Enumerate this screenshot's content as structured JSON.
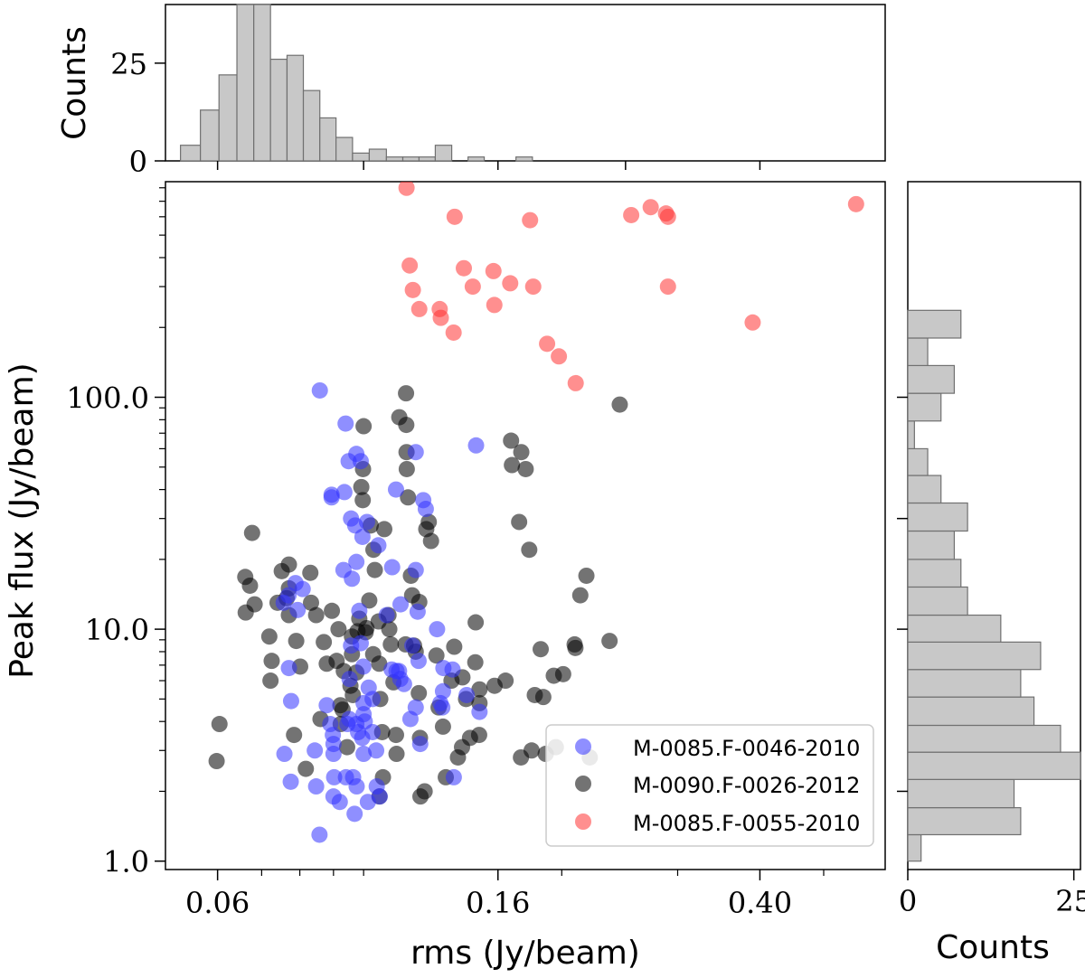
{
  "chart_data": {
    "type": "scatter",
    "xlabel": "rms (Jy/beam)",
    "ylabel": "Peak flux (Jy/beam)",
    "x_scale": "log",
    "y_scale": "log",
    "xlim": [
      0.05,
      0.62
    ],
    "ylim": [
      0.92,
      850
    ],
    "x_tick_labels": [
      "0.06",
      "0.16",
      "0.40"
    ],
    "y_tick_labels": [
      "1.0",
      "10.0",
      "100.0"
    ],
    "legend_position": "lower-right",
    "series": [
      {
        "name": "M-0085.F-0046-2010",
        "color": "#3333ff",
        "points": [
          [
            0.0858,
            107
          ],
          [
            0.0788,
            15.8
          ],
          [
            0.0808,
            14.9
          ],
          [
            0.0769,
            14.0
          ],
          [
            0.0756,
            13.0
          ],
          [
            0.0794,
            12.1
          ],
          [
            0.077,
            6.8
          ],
          [
            0.0776,
            4.9
          ],
          [
            0.0758,
            2.9
          ],
          [
            0.0775,
            2.2
          ],
          [
            0.0843,
            3.0
          ],
          [
            0.0847,
            2.1
          ],
          [
            0.0857,
            1.3
          ],
          [
            0.0879,
            4.7
          ],
          [
            0.089,
            3.9
          ],
          [
            0.0898,
            3.5
          ],
          [
            0.09,
            3.2
          ],
          [
            0.09,
            2.9
          ],
          [
            0.09,
            1.9
          ],
          [
            0.0902,
            2.3
          ],
          [
            0.092,
            1.8
          ],
          [
            0.094,
            2.3
          ],
          [
            0.0945,
            3.9
          ],
          [
            0.0951,
            4.1
          ],
          [
            0.0964,
            2.3
          ],
          [
            0.0969,
            1.6
          ],
          [
            0.0975,
            3.9
          ],
          [
            0.0976,
            2.1
          ],
          [
            0.0981,
            3.6
          ],
          [
            0.0995,
            3.4
          ],
          [
            0.1,
            2.9
          ],
          [
            0.1,
            4.3
          ],
          [
            0.1,
            4.8
          ],
          [
            0.1004,
            4.0
          ],
          [
            0.1015,
            1.8
          ],
          [
            0.1032,
            3.6
          ],
          [
            0.1045,
            3.0
          ],
          [
            0.1047,
            2.1
          ],
          [
            0.1058,
            1.9
          ],
          [
            0.0894,
            37
          ],
          [
            0.0894,
            38
          ],
          [
            0.0935,
            39
          ],
          [
            0.0939,
            77
          ],
          [
            0.0949,
            53
          ],
          [
            0.0957,
            30
          ],
          [
            0.0975,
            57
          ],
          [
            0.099,
            53
          ],
          [
            0.0971,
            28
          ],
          [
            0.0996,
            25
          ],
          [
            0.1012,
            29
          ],
          [
            0.0975,
            19.5
          ],
          [
            0.0932,
            18.0
          ],
          [
            0.096,
            16.5
          ],
          [
            0.0957,
            8.5
          ],
          [
            0.0952,
            6.1
          ],
          [
            0.0985,
            12.0
          ],
          [
            0.099,
            8.7
          ],
          [
            0.0999,
            6.9
          ],
          [
            0.1018,
            5.6
          ],
          [
            0.1032,
            5.0
          ],
          [
            0.1053,
            23
          ],
          [
            0.1105,
            18.5
          ],
          [
            0.1084,
            11.5
          ],
          [
            0.1103,
            6.7
          ],
          [
            0.112,
            40
          ],
          [
            0.1132,
            6.6
          ],
          [
            0.1137,
            6.1
          ],
          [
            0.1138,
            12.8
          ],
          [
            0.1152,
            5.8
          ],
          [
            0.1178,
            4.1
          ],
          [
            0.12,
            58
          ],
          [
            0.12,
            18.0
          ],
          [
            0.1208,
            11.9
          ],
          [
            0.1212,
            7.3
          ],
          [
            0.1219,
            3.2
          ],
          [
            0.1232,
            36
          ],
          [
            0.1243,
            33
          ],
          [
            0.1293,
            10.0
          ],
          [
            0.1322,
            6.8
          ],
          [
            0.1308,
            4.8
          ],
          [
            0.132,
            5.4
          ],
          [
            0.1317,
            4.6
          ],
          [
            0.1371,
            2.3
          ],
          [
            0.1365,
            6.7
          ],
          [
            0.1434,
            5.2
          ],
          [
            0.1482,
            62
          ],
          [
            0.15,
            4.4
          ],
          [
            0.12,
            4.6
          ],
          [
            0.1186,
            8.5
          ],
          [
            0.1122,
            6.6
          ]
        ]
      },
      {
        "name": "M-0090.F-0026-2012",
        "color": "#000000",
        "points": [
          [
            0.0604,
            3.9
          ],
          [
            0.0598,
            2.7
          ],
          [
            0.0661,
            16.8
          ],
          [
            0.0662,
            11.8
          ],
          [
            0.0683,
            12.8
          ],
          [
            0.0672,
            15.4
          ],
          [
            0.0677,
            26
          ],
          [
            0.0722,
            6.0
          ],
          [
            0.0719,
            9.3
          ],
          [
            0.0725,
            7.3
          ],
          [
            0.074,
            13.0
          ],
          [
            0.0751,
            17.8
          ],
          [
            0.0764,
            13.6
          ],
          [
            0.077,
            11.5
          ],
          [
            0.077,
            15.0
          ],
          [
            0.077,
            19.0
          ],
          [
            0.0784,
            3.5
          ],
          [
            0.079,
            8.9
          ],
          [
            0.0801,
            6.9
          ],
          [
            0.0817,
            2.5
          ],
          [
            0.083,
            17.5
          ],
          [
            0.0832,
            13.0
          ],
          [
            0.0847,
            11.5
          ],
          [
            0.086,
            4.1
          ],
          [
            0.087,
            8.8
          ],
          [
            0.0879,
            7.1
          ],
          [
            0.0895,
            12.0
          ],
          [
            0.091,
            7.3
          ],
          [
            0.0916,
            10.0
          ],
          [
            0.0922,
            4.7
          ],
          [
            0.0923,
            3.9
          ],
          [
            0.0929,
            4.5
          ],
          [
            0.0933,
            6.6
          ],
          [
            0.0944,
            3.1
          ],
          [
            0.0955,
            5.7
          ],
          [
            0.096,
            9.3
          ],
          [
            0.096,
            7.8
          ],
          [
            0.0963,
            5.2
          ],
          [
            0.0975,
            6.5
          ],
          [
            0.0979,
            9.8
          ],
          [
            0.0985,
            11.1
          ],
          [
            0.0992,
            41
          ],
          [
            0.0997,
            36
          ],
          [
            0.0998,
            49
          ],
          [
            0.1,
            75
          ],
          [
            0.1007,
            9.7
          ],
          [
            0.101,
            10.1
          ],
          [
            0.102,
            13.3
          ],
          [
            0.1025,
            28
          ],
          [
            0.1034,
            7.8
          ],
          [
            0.1035,
            22
          ],
          [
            0.104,
            18.0
          ],
          [
            0.1054,
            10.8
          ],
          [
            0.1056,
            7.1
          ],
          [
            0.1057,
            1.9
          ],
          [
            0.106,
            5.0
          ],
          [
            0.1067,
            3.6
          ],
          [
            0.107,
            2.3
          ],
          [
            0.1075,
            27
          ],
          [
            0.1091,
            11.5
          ],
          [
            0.1094,
            10.0
          ],
          [
            0.11,
            8.6
          ],
          [
            0.111,
            5.9
          ],
          [
            0.112,
            3.5
          ],
          [
            0.1122,
            2.9
          ],
          [
            0.1133,
            82
          ],
          [
            0.1158,
            8.6
          ],
          [
            0.116,
            104
          ],
          [
            0.1161,
            76
          ],
          [
            0.1162,
            58
          ],
          [
            0.1163,
            49
          ],
          [
            0.1168,
            37
          ],
          [
            0.118,
            17.0
          ],
          [
            0.1185,
            14.0
          ],
          [
            0.1193,
            8.5
          ],
          [
            0.12,
            8.0
          ],
          [
            0.1213,
            5.3
          ],
          [
            0.1215,
            13.1
          ],
          [
            0.1218,
            3.4
          ],
          [
            0.122,
            1.9
          ],
          [
            0.1238,
            2.0
          ],
          [
            0.1245,
            27
          ],
          [
            0.1256,
            29
          ],
          [
            0.1266,
            24
          ],
          [
            0.129,
            7.7
          ],
          [
            0.13,
            4.6
          ],
          [
            0.132,
            3.8
          ],
          [
            0.1333,
            2.3
          ],
          [
            0.136,
            6.0
          ],
          [
            0.1373,
            8.4
          ],
          [
            0.1391,
            2.8
          ],
          [
            0.1413,
            6.2
          ],
          [
            0.1411,
            3.1
          ],
          [
            0.1431,
            5.0
          ],
          [
            0.1451,
            3.4
          ],
          [
            0.148,
            10.7
          ],
          [
            0.1478,
            7.2
          ],
          [
            0.15,
            5.5
          ],
          [
            0.15,
            4.8
          ],
          [
            0.1498,
            3.5
          ],
          [
            0.1581,
            5.7
          ],
          [
            0.1643,
            6.0
          ],
          [
            0.1675,
            65
          ],
          [
            0.168,
            51
          ],
          [
            0.1723,
            29
          ],
          [
            0.1734,
            2.8
          ],
          [
            0.1736,
            58
          ],
          [
            0.1763,
            49
          ],
          [
            0.1785,
            22
          ],
          [
            0.18,
            3.0
          ],
          [
            0.182,
            5.2
          ],
          [
            0.1858,
            8.2
          ],
          [
            0.1875,
            5.1
          ],
          [
            0.1891,
            2.9
          ],
          [
            0.1945,
            6.3
          ],
          [
            0.1959,
            3.1
          ],
          [
            0.201,
            6.4
          ],
          [
            0.2092,
            8.6
          ],
          [
            0.2098,
            8.3
          ],
          [
            0.2134,
            14.0
          ],
          [
            0.218,
            17.0
          ],
          [
            0.2206,
            2.8
          ],
          [
            0.2364,
            8.9
          ],
          [
            0.245,
            93
          ]
        ]
      },
      {
        "name": "M-0085.F-0055-2010",
        "color": "#ff3333",
        "points": [
          [
            0.1162,
            800
          ],
          [
            0.1175,
            370
          ],
          [
            0.1188,
            290
          ],
          [
            0.1215,
            240
          ],
          [
            0.1305,
            240
          ],
          [
            0.131,
            220
          ],
          [
            0.137,
            190
          ],
          [
            0.1375,
            600
          ],
          [
            0.142,
            360
          ],
          [
            0.1465,
            300
          ],
          [
            0.1575,
            350
          ],
          [
            0.158,
            250
          ],
          [
            0.167,
            310
          ],
          [
            0.179,
            580
          ],
          [
            0.181,
            300
          ],
          [
            0.19,
            170
          ],
          [
            0.198,
            150
          ],
          [
            0.21,
            115
          ],
          [
            0.255,
            610
          ],
          [
            0.273,
            660
          ],
          [
            0.288,
            620
          ],
          [
            0.29,
            600
          ],
          [
            0.29,
            300
          ],
          [
            0.39,
            210
          ],
          [
            0.56,
            680
          ]
        ]
      }
    ],
    "top_histogram": {
      "ylabel": "Counts",
      "tick_labels": [
        "0",
        "25"
      ],
      "ylim": [
        0,
        40
      ],
      "bins": [
        [
          0.0527,
          0.0565,
          4
        ],
        [
          0.0565,
          0.0603,
          13
        ],
        [
          0.0603,
          0.0642,
          22
        ],
        [
          0.0642,
          0.0681,
          40
        ],
        [
          0.0681,
          0.0722,
          40
        ],
        [
          0.0722,
          0.0765,
          26
        ],
        [
          0.0765,
          0.081,
          27
        ],
        [
          0.081,
          0.0858,
          18
        ],
        [
          0.0858,
          0.0908,
          11
        ],
        [
          0.0908,
          0.0962,
          6
        ],
        [
          0.0962,
          0.102,
          2
        ],
        [
          0.102,
          0.1083,
          3
        ],
        [
          0.1083,
          0.1147,
          1
        ],
        [
          0.1147,
          0.1214,
          1
        ],
        [
          0.1214,
          0.1285,
          1
        ],
        [
          0.1285,
          0.1361,
          4
        ],
        [
          0.1441,
          0.1525,
          1
        ],
        [
          0.1704,
          0.1805,
          1
        ]
      ]
    },
    "right_histogram": {
      "xlabel": "Counts",
      "tick_labels": [
        "0",
        "25"
      ],
      "xlim": [
        0,
        26
      ],
      "bins": [
        [
          1.0,
          1.3,
          2
        ],
        [
          1.3,
          1.7,
          17
        ],
        [
          1.7,
          2.25,
          16
        ],
        [
          2.25,
          2.95,
          26
        ],
        [
          2.95,
          3.85,
          23
        ],
        [
          3.85,
          5.1,
          19
        ],
        [
          5.1,
          6.7,
          17
        ],
        [
          6.7,
          8.8,
          20
        ],
        [
          8.8,
          11.5,
          14
        ],
        [
          11.5,
          15.2,
          9
        ],
        [
          15.2,
          20.0,
          8
        ],
        [
          20.0,
          26.5,
          7
        ],
        [
          26.5,
          35.0,
          9
        ],
        [
          35.0,
          46.0,
          5
        ],
        [
          46.0,
          60.0,
          3
        ],
        [
          60.0,
          79.0,
          1
        ],
        [
          79.0,
          104.0,
          5
        ],
        [
          104.0,
          137.0,
          7
        ],
        [
          137.0,
          180.0,
          3
        ],
        [
          180.0,
          237.0,
          8
        ]
      ]
    }
  }
}
